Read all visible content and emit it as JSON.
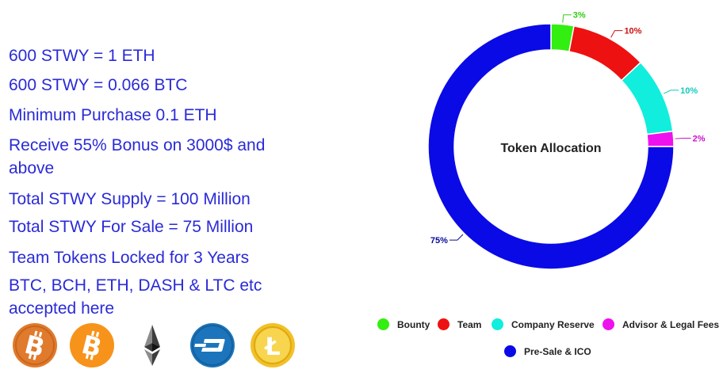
{
  "info": {
    "line1": "600 STWY = 1 ETH",
    "line2": "600 STWY = 0.066 BTC",
    "line3": "Minimum Purchase 0.1 ETH",
    "line4": "Receive 55% Bonus on 3000$ and above",
    "line5": "Total STWY Supply = 100 Million",
    "line6": "Total STWY For Sale = 75 Million",
    "line7": "Team Tokens Locked for 3 Years",
    "line8": "BTC, BCH, ETH, DASH & LTC etc accepted here"
  },
  "coins": [
    {
      "icon": "bitcoin-icon",
      "color": "#e07a2c"
    },
    {
      "icon": "bitcoin-cash-icon",
      "color": "#f7931a"
    },
    {
      "icon": "ethereum-icon",
      "color": "#3c3c3d"
    },
    {
      "icon": "dash-icon",
      "color": "#1c75bc"
    },
    {
      "icon": "litecoin-icon",
      "color": "#f2c029"
    }
  ],
  "chart_data": {
    "type": "pie",
    "title": "Token Allocation",
    "categories": [
      "Bounty",
      "Team",
      "Company Reserve",
      "Advisor & Legal Fees",
      "Pre-Sale & ICO"
    ],
    "values": [
      3,
      10,
      10,
      2,
      75
    ],
    "labels": [
      "3%",
      "10%",
      "10%",
      "2%",
      "75%"
    ],
    "colors": [
      "#33ee11",
      "#ee1111",
      "#11eedd",
      "#ee11ee",
      "#0a0ae6"
    ],
    "label_colors": [
      "#33cc11",
      "#cc1111",
      "#11ccbb",
      "#cc11cc",
      "#0a0a9a"
    ],
    "legend_position": "bottom"
  }
}
